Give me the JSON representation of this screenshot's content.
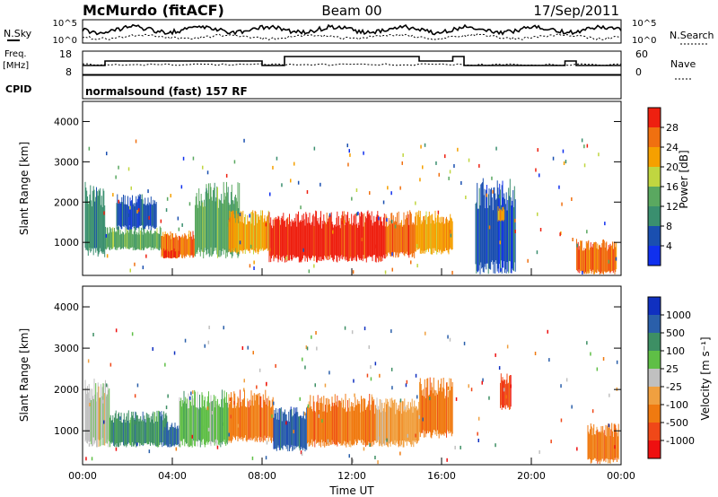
{
  "header": {
    "station": "McMurdo (fitACF)",
    "beam": "Beam 00",
    "date": "17/Sep/2011"
  },
  "noise_panel": {
    "left_label": "N.Sky",
    "right_label": "N.Search",
    "left_ticks": [
      "10^5",
      "10^0"
    ],
    "right_ticks": [
      "10^5",
      "10^0"
    ]
  },
  "freq_panel": {
    "left_label_line1": "Freq.",
    "left_label_line2": "[MHz]",
    "right_label": "Nave",
    "left_ticks": [
      "18",
      "8"
    ],
    "right_ticks": [
      "60",
      "0"
    ]
  },
  "cpid": {
    "label": "CPID",
    "text": "normalsound (fast) 157 RF"
  },
  "colors": {
    "power": [
      "#1030ee",
      "#1a4fb0",
      "#3a8f6f",
      "#5aa860",
      "#c0d640",
      "#f5a000",
      "#f07010",
      "#ee2010"
    ],
    "velocity": [
      "#ee1010",
      "#f04818",
      "#f07a10",
      "#f0a040",
      "#c0c0c0",
      "#5fbf46",
      "#3d8f64",
      "#2a5faa",
      "#1030c0"
    ]
  },
  "chart_data": [
    {
      "type": "heatmap",
      "name": "power",
      "ylabel": "Slant Range [km]",
      "xlabel": "",
      "yticks": [
        "1000",
        "2000",
        "3000",
        "4000"
      ],
      "ylim": [
        180,
        4500
      ],
      "xlim_hours": [
        0,
        24
      ],
      "colorbar": {
        "label": "Power [dB]",
        "ticks": [
          "4",
          "8",
          "12",
          "16",
          "20",
          "24",
          "28"
        ]
      },
      "regions": [
        {
          "t0": 0.1,
          "t1": 1.0,
          "r0": 600,
          "r1": 2500,
          "level": 2
        },
        {
          "t0": 1.0,
          "t1": 3.5,
          "r0": 800,
          "r1": 1400,
          "level": 3
        },
        {
          "t0": 1.5,
          "t1": 3.3,
          "r0": 1300,
          "r1": 2200,
          "level": 1
        },
        {
          "t0": 3.5,
          "t1": 5.0,
          "r0": 600,
          "r1": 1300,
          "level": 6
        },
        {
          "t0": 3.6,
          "t1": 4.3,
          "r0": 600,
          "r1": 850,
          "level": 7
        },
        {
          "t0": 5.0,
          "t1": 7.0,
          "r0": 600,
          "r1": 2500,
          "level": 3
        },
        {
          "t0": 6.5,
          "t1": 8.3,
          "r0": 700,
          "r1": 1800,
          "level": 5
        },
        {
          "t0": 8.3,
          "t1": 11.0,
          "r0": 500,
          "r1": 1800,
          "level": 7
        },
        {
          "t0": 11.0,
          "t1": 13.5,
          "r0": 500,
          "r1": 1800,
          "level": 7
        },
        {
          "t0": 13.5,
          "t1": 14.8,
          "r0": 600,
          "r1": 1800,
          "level": 6
        },
        {
          "t0": 14.8,
          "t1": 16.5,
          "r0": 700,
          "r1": 1800,
          "level": 5
        },
        {
          "t0": 17.5,
          "t1": 19.3,
          "r0": 200,
          "r1": 2600,
          "level": 1
        },
        {
          "t0": 18.5,
          "t1": 18.8,
          "r0": 1500,
          "r1": 1900,
          "level": 5
        },
        {
          "t0": 22.0,
          "t1": 23.8,
          "r0": 200,
          "r1": 1100,
          "level": 6
        }
      ]
    },
    {
      "type": "heatmap",
      "name": "velocity",
      "ylabel": "Slant Range [km]",
      "xlabel": "Time UT",
      "xticks": [
        "00:00",
        "04:00",
        "08:00",
        "12:00",
        "16:00",
        "20:00",
        "00:00"
      ],
      "yticks": [
        "1000",
        "2000",
        "3000",
        "4000"
      ],
      "ylim": [
        180,
        4500
      ],
      "xlim_hours": [
        0,
        24
      ],
      "colorbar": {
        "label": "Velocity [m s⁻¹]",
        "ticks": [
          "-1000",
          "-500",
          "-100",
          "-25",
          "25",
          "100",
          "500",
          "1000"
        ]
      },
      "regions": [
        {
          "t0": 0.1,
          "t1": 1.2,
          "r0": 600,
          "r1": 2300,
          "level": 4
        },
        {
          "t0": 1.2,
          "t1": 3.8,
          "r0": 600,
          "r1": 1500,
          "level": 6
        },
        {
          "t0": 3.6,
          "t1": 4.3,
          "r0": 600,
          "r1": 1200,
          "level": 7
        },
        {
          "t0": 4.3,
          "t1": 6.5,
          "r0": 600,
          "r1": 2000,
          "level": 5
        },
        {
          "t0": 6.5,
          "t1": 8.5,
          "r0": 700,
          "r1": 2000,
          "level": 2
        },
        {
          "t0": 8.5,
          "t1": 10.0,
          "r0": 500,
          "r1": 1600,
          "level": 7
        },
        {
          "t0": 10.0,
          "t1": 13.0,
          "r0": 600,
          "r1": 1900,
          "level": 2
        },
        {
          "t0": 13.0,
          "t1": 15.0,
          "r0": 600,
          "r1": 1800,
          "level": 3
        },
        {
          "t0": 15.0,
          "t1": 16.5,
          "r0": 800,
          "r1": 2300,
          "level": 2
        },
        {
          "t0": 18.6,
          "t1": 19.1,
          "r0": 1500,
          "r1": 2400,
          "level": 1
        },
        {
          "t0": 22.5,
          "t1": 23.9,
          "r0": 200,
          "r1": 1200,
          "level": 2
        }
      ]
    }
  ]
}
